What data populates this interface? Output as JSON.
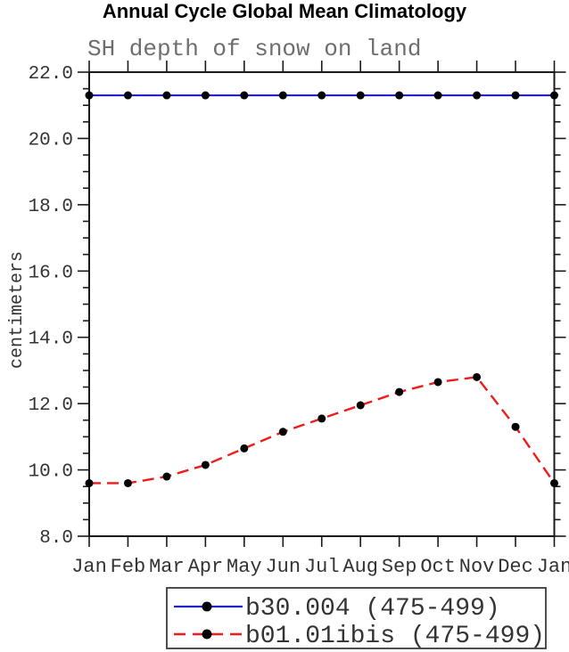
{
  "chart_data": {
    "type": "line",
    "title": "Annual Cycle Global Mean Climatology",
    "subtitle": "SH depth of snow on land",
    "ylabel": "centimeters",
    "xlabel": "",
    "categories": [
      "Jan",
      "Feb",
      "Mar",
      "Apr",
      "May",
      "Jun",
      "Jul",
      "Aug",
      "Sep",
      "Oct",
      "Nov",
      "Dec",
      "Jan"
    ],
    "ylim": [
      8.0,
      22.0
    ],
    "ytick_major_step": 2.0,
    "ytick_minor_step": 0.5,
    "ytick_labels": [
      "8.0",
      "10.0",
      "12.0",
      "14.0",
      "16.0",
      "18.0",
      "20.0",
      "22.0"
    ],
    "grid": false,
    "legend_position": "bottom-center",
    "axis_color": "#1a1a1a",
    "tick_label_color": "#333333",
    "series": [
      {
        "name": "b30.004 (475-499)",
        "color": "#2121c8",
        "line_style": "solid",
        "marker": "circle",
        "marker_color": "#000000",
        "values": [
          21.3,
          21.3,
          21.3,
          21.3,
          21.3,
          21.3,
          21.3,
          21.3,
          21.3,
          21.3,
          21.3,
          21.3,
          21.3
        ]
      },
      {
        "name": "b01.01ibis (475-499)",
        "color": "#ee1c1c",
        "line_style": "dashed",
        "marker": "circle",
        "marker_color": "#000000",
        "values": [
          9.6,
          9.6,
          9.8,
          10.15,
          10.65,
          11.15,
          11.55,
          11.95,
          12.35,
          12.65,
          12.8,
          11.3,
          9.6
        ]
      }
    ]
  }
}
